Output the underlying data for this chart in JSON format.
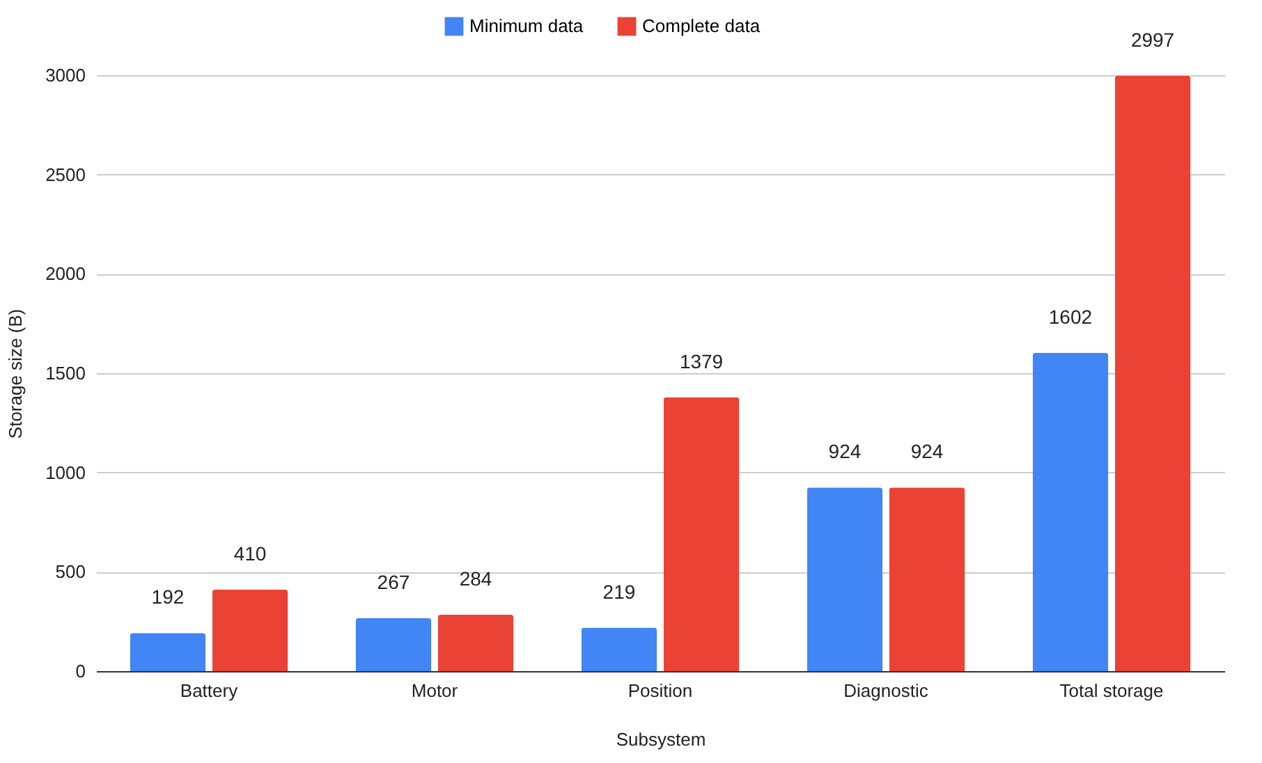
{
  "chart_data": {
    "type": "bar",
    "xlabel": "Subsystem",
    "ylabel": "Storage size (B)",
    "categories": [
      "Battery",
      "Motor",
      "Position",
      "Diagnostic",
      "Total storage"
    ],
    "series": [
      {
        "name": "Minimum data",
        "color": "#4285f4",
        "values": [
          192,
          267,
          219,
          924,
          1602
        ]
      },
      {
        "name": "Complete data",
        "color": "#ea4335",
        "values": [
          410,
          284,
          1379,
          924,
          2997
        ]
      }
    ],
    "ylim": [
      0,
      3000
    ],
    "yticks": [
      0,
      500,
      1000,
      1500,
      2000,
      2500,
      3000
    ],
    "grid": "y",
    "legend": "top",
    "data_labels": true
  }
}
